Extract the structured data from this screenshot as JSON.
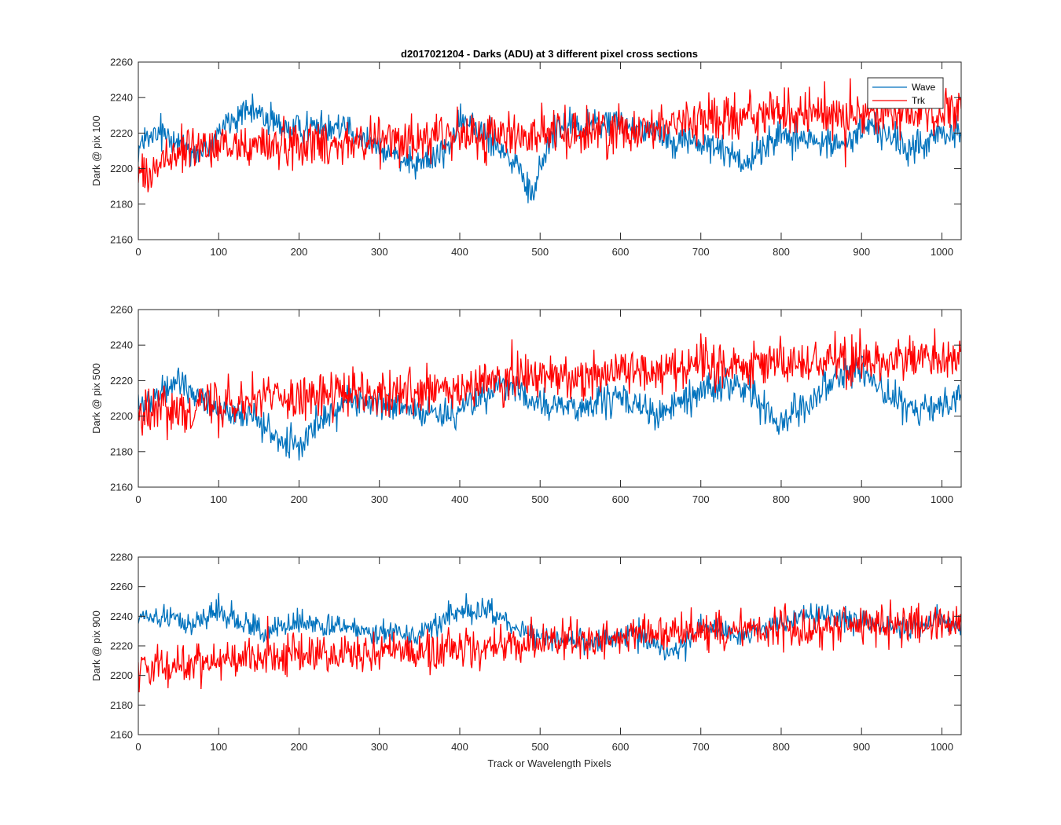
{
  "figure": {
    "title": "d2017021204 - Darks (ADU) at 3 different pixel cross sections",
    "xlabel": "Track or Wavelength Pixels"
  },
  "legend": {
    "placement": "top-right",
    "entries": [
      {
        "name": "Wave",
        "color": "#0072BD"
      },
      {
        "name": "Trk",
        "color": "#FF0000"
      }
    ]
  },
  "chart_data": [
    {
      "type": "line",
      "title": "d2017021204 - Darks (ADU) at 3 different pixel cross sections",
      "ylabel": "Dark @ pix 100",
      "xlabel": "",
      "xlim": [
        0,
        1024
      ],
      "ylim": [
        2160,
        2260
      ],
      "xticks": [
        0,
        100,
        200,
        300,
        400,
        500,
        600,
        700,
        800,
        900,
        1000
      ],
      "yticks": [
        2160,
        2180,
        2200,
        2220,
        2240,
        2260
      ],
      "grid": false,
      "legend": "top-right",
      "x_step": 1,
      "series": [
        {
          "name": "Wave",
          "color": "#0072BD",
          "noise_amplitude": 7,
          "x": [
            0,
            20,
            40,
            60,
            80,
            100,
            120,
            150,
            170,
            200,
            230,
            260,
            300,
            320,
            350,
            380,
            400,
            420,
            450,
            470,
            480,
            490,
            500,
            520,
            550,
            580,
            620,
            660,
            700,
            730,
            760,
            800,
            840,
            880,
            910,
            940,
            960,
            1000,
            1024
          ],
          "y": [
            2212,
            2218,
            2220,
            2212,
            2207,
            2222,
            2228,
            2232,
            2225,
            2222,
            2225,
            2226,
            2210,
            2208,
            2204,
            2208,
            2225,
            2224,
            2214,
            2200,
            2192,
            2184,
            2200,
            2226,
            2222,
            2226,
            2224,
            2218,
            2214,
            2210,
            2204,
            2220,
            2215,
            2214,
            2226,
            2216,
            2210,
            2220,
            2218
          ]
        },
        {
          "name": "Trk",
          "color": "#FF0000",
          "noise_amplitude": 10,
          "x": [
            0,
            20,
            50,
            100,
            200,
            300,
            400,
            500,
            600,
            700,
            800,
            900,
            1024
          ],
          "y": [
            2198,
            2200,
            2210,
            2212,
            2214,
            2216,
            2218,
            2220,
            2222,
            2228,
            2231,
            2230,
            2232
          ]
        }
      ]
    },
    {
      "type": "line",
      "title": "",
      "ylabel": "Dark @ pix 500",
      "xlabel": "",
      "xlim": [
        0,
        1024
      ],
      "ylim": [
        2160,
        2260
      ],
      "xticks": [
        0,
        100,
        200,
        300,
        400,
        500,
        600,
        700,
        800,
        900,
        1000
      ],
      "yticks": [
        2160,
        2180,
        2200,
        2220,
        2240,
        2260
      ],
      "grid": false,
      "x_step": 1,
      "series": [
        {
          "name": "Wave",
          "color": "#0072BD",
          "noise_amplitude": 7,
          "x": [
            0,
            20,
            50,
            80,
            120,
            150,
            170,
            200,
            230,
            260,
            300,
            350,
            380,
            420,
            450,
            500,
            550,
            600,
            650,
            700,
            750,
            790,
            800,
            830,
            880,
            900,
            930,
            960,
            1000,
            1024
          ],
          "y": [
            2205,
            2208,
            2220,
            2210,
            2200,
            2198,
            2186,
            2182,
            2200,
            2210,
            2205,
            2204,
            2200,
            2208,
            2218,
            2206,
            2205,
            2210,
            2200,
            2215,
            2218,
            2200,
            2198,
            2208,
            2226,
            2225,
            2214,
            2202,
            2206,
            2215
          ]
        },
        {
          "name": "Trk",
          "color": "#FF0000",
          "noise_amplitude": 10,
          "x": [
            0,
            30,
            100,
            200,
            300,
            400,
            450,
            500,
            600,
            700,
            800,
            900,
            1024
          ],
          "y": [
            2200,
            2204,
            2208,
            2212,
            2212,
            2214,
            2220,
            2222,
            2225,
            2230,
            2230,
            2232,
            2232
          ]
        }
      ]
    },
    {
      "type": "line",
      "title": "",
      "ylabel": "Dark @ pix 900",
      "xlabel": "Track or Wavelength Pixels",
      "xlim": [
        0,
        1024
      ],
      "ylim": [
        2160,
        2280
      ],
      "xticks": [
        0,
        100,
        200,
        300,
        400,
        500,
        600,
        700,
        800,
        900,
        1000
      ],
      "yticks": [
        2160,
        2180,
        2200,
        2220,
        2240,
        2260,
        2280
      ],
      "grid": false,
      "x_step": 1,
      "series": [
        {
          "name": "Wave",
          "color": "#0072BD",
          "noise_amplitude": 6,
          "x": [
            0,
            30,
            60,
            100,
            130,
            160,
            200,
            250,
            300,
            350,
            390,
            420,
            450,
            480,
            520,
            560,
            620,
            660,
            700,
            760,
            820,
            870,
            920,
            960,
            1000,
            1024
          ],
          "y": [
            2238,
            2240,
            2234,
            2244,
            2236,
            2228,
            2236,
            2232,
            2230,
            2228,
            2242,
            2244,
            2240,
            2228,
            2226,
            2222,
            2228,
            2215,
            2232,
            2228,
            2238,
            2240,
            2234,
            2232,
            2238,
            2232
          ]
        },
        {
          "name": "Trk",
          "color": "#FF0000",
          "noise_amplitude": 10,
          "x": [
            0,
            50,
            100,
            200,
            300,
            400,
            500,
            600,
            700,
            800,
            900,
            1024
          ],
          "y": [
            2204,
            2206,
            2212,
            2214,
            2216,
            2218,
            2222,
            2226,
            2230,
            2232,
            2234,
            2234
          ]
        }
      ]
    }
  ]
}
